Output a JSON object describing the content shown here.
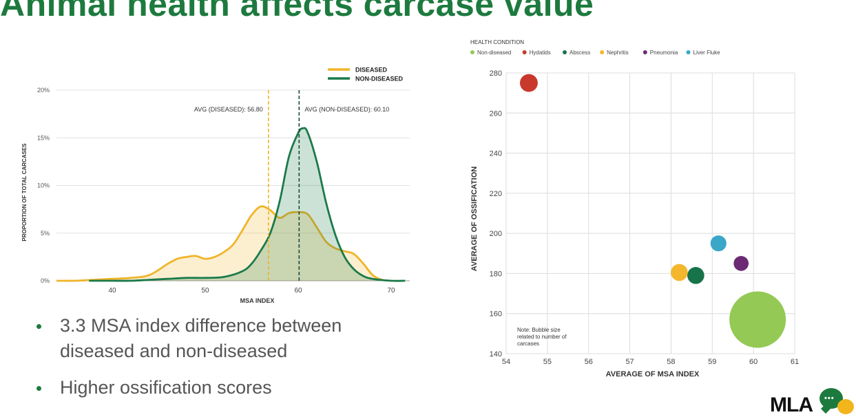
{
  "title": "Animal health affects carcase value",
  "bullets": [
    "3.3 MSA index difference between diseased and non-diseased",
    "Higher ossification scores"
  ],
  "logo": {
    "text": "MLA"
  },
  "colors": {
    "title_green": "#1d7a3e",
    "diseased": "#f0b429",
    "non_diseased": "#1a7a4a"
  },
  "chart_data": [
    {
      "type": "area",
      "title": "",
      "xlabel": "MSA INDEX",
      "ylabel": "PROPORTION OF TOTAL CARCASES",
      "xlim": [
        34,
        72
      ],
      "ylim": [
        0,
        20
      ],
      "x_ticks": [
        "40",
        "50",
        "60",
        "70"
      ],
      "x_tick_values": [
        40,
        50,
        60,
        70
      ],
      "y_ticks": [
        "0%",
        "5%",
        "10%",
        "15%",
        "20%"
      ],
      "y_tick_values": [
        0,
        5,
        10,
        15,
        20
      ],
      "grid": "horizontal",
      "legend_position": "top-right",
      "series": [
        {
          "name": "DISEASED",
          "color": "#f0b429",
          "points": [
            [
              34,
              0
            ],
            [
              36,
              0
            ],
            [
              38,
              0.1
            ],
            [
              40,
              0.2
            ],
            [
              42,
              0.3
            ],
            [
              44,
              0.6
            ],
            [
              46,
              1.8
            ],
            [
              47,
              2.3
            ],
            [
              48,
              2.5
            ],
            [
              49,
              2.6
            ],
            [
              50,
              2.3
            ],
            [
              51,
              2.5
            ],
            [
              52,
              3.0
            ],
            [
              53,
              3.8
            ],
            [
              54,
              5.3
            ],
            [
              55,
              6.9
            ],
            [
              56,
              7.8
            ],
            [
              57,
              7.4
            ],
            [
              58,
              6.6
            ],
            [
              59,
              7.1
            ],
            [
              60,
              7.2
            ],
            [
              61,
              7.0
            ],
            [
              62,
              5.6
            ],
            [
              63,
              4.1
            ],
            [
              64,
              3.4
            ],
            [
              65,
              3.1
            ],
            [
              66,
              2.8
            ],
            [
              67,
              1.8
            ],
            [
              68,
              0.6
            ],
            [
              69,
              0.1
            ],
            [
              70,
              0
            ]
          ]
        },
        {
          "name": "NON-DISEASED",
          "color": "#1a7a4a",
          "points": [
            [
              37.5,
              0
            ],
            [
              40,
              0
            ],
            [
              42,
              0
            ],
            [
              44,
              0.1
            ],
            [
              46,
              0.2
            ],
            [
              48,
              0.3
            ],
            [
              50,
              0.3
            ],
            [
              52,
              0.4
            ],
            [
              54,
              1.0
            ],
            [
              55,
              1.8
            ],
            [
              56,
              3.2
            ],
            [
              57,
              5.0
            ],
            [
              58,
              8.3
            ],
            [
              59,
              13.0
            ],
            [
              60,
              15.5
            ],
            [
              60.5,
              16.0
            ],
            [
              61,
              15.6
            ],
            [
              62,
              12.5
            ],
            [
              63,
              8.2
            ],
            [
              64,
              4.8
            ],
            [
              65,
              2.5
            ],
            [
              66,
              1.2
            ],
            [
              67,
              0.5
            ],
            [
              68,
              0.2
            ],
            [
              70,
              0
            ],
            [
              71.5,
              0
            ]
          ]
        }
      ],
      "annotations": [
        {
          "label": "AVG (DISEASED): 56.80",
          "x": 56.8,
          "color": "#f0b429"
        },
        {
          "label": "AVG (NON-DISEASED): 60.10",
          "x": 60.1,
          "color": "#1a4a38"
        }
      ]
    },
    {
      "type": "scatter",
      "title": "",
      "xlabel": "AVERAGE OF MSA INDEX",
      "ylabel": "AVERAGE OF OSSIFICATION",
      "xlim": [
        54,
        61
      ],
      "ylim": [
        140,
        280
      ],
      "x_ticks": [
        "54",
        "55",
        "56",
        "57",
        "58",
        "59",
        "60",
        "61"
      ],
      "x_tick_values": [
        54,
        55,
        56,
        57,
        58,
        59,
        60,
        61
      ],
      "y_ticks": [
        "140",
        "160",
        "180",
        "200",
        "220",
        "240",
        "260",
        "280"
      ],
      "y_tick_values": [
        140,
        160,
        180,
        200,
        220,
        240,
        260,
        280
      ],
      "grid": "both",
      "legend_title": "HEALTH CONDITION",
      "legend_position": "top",
      "note": "Note: Bubble size related to number of carcases",
      "series": [
        {
          "name": "Non-diseased",
          "color": "#93c954",
          "x": 60.1,
          "y": 157,
          "size": 1.0
        },
        {
          "name": "Hydatids",
          "color": "#c8382c",
          "x": 54.55,
          "y": 275,
          "size": 0.1
        },
        {
          "name": "Abscess",
          "color": "#16734a",
          "x": 58.6,
          "y": 179,
          "size": 0.09
        },
        {
          "name": "Nephritis",
          "color": "#f4b62c",
          "x": 58.2,
          "y": 180.5,
          "size": 0.09
        },
        {
          "name": "Pneumonia",
          "color": "#6b2a73",
          "x": 59.7,
          "y": 185,
          "size": 0.07
        },
        {
          "name": "Liver Fluke",
          "color": "#3aa7c9",
          "x": 59.15,
          "y": 195,
          "size": 0.08
        }
      ]
    }
  ]
}
